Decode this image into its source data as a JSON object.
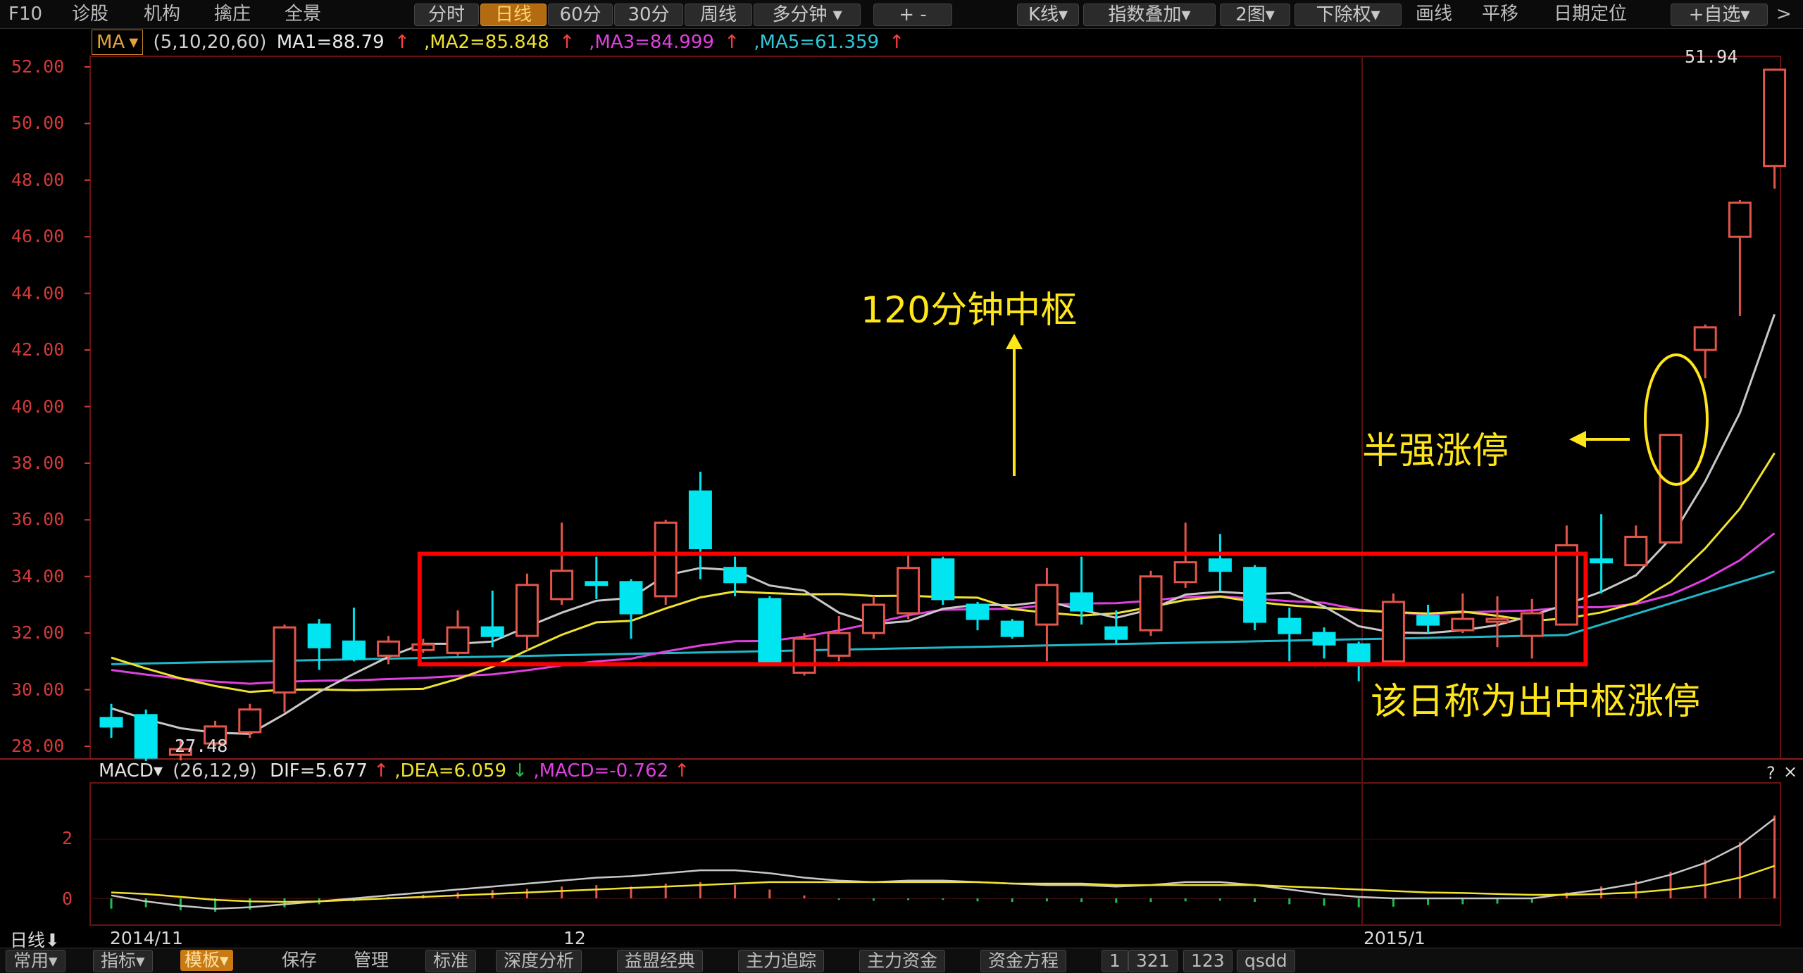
{
  "toolbar": {
    "left_items": [
      "F10",
      "诊股",
      "机构",
      "擒庄",
      "全景"
    ],
    "period_tabs": [
      "分时",
      "日线",
      "60分",
      "30分",
      "周线",
      "多分钟"
    ],
    "active_period": "日线",
    "zoom_label": "+ -",
    "right_items": [
      "K线",
      "指数叠加",
      "2图",
      "下除权",
      "画线",
      "平移",
      "日期定位",
      "+自选"
    ],
    "close_label": ">"
  },
  "ma_bar": {
    "selector": "MA",
    "params": "(5,10,20,60)",
    "ma1": "MA1=88.79",
    "ma2": ",MA2=85.848",
    "ma3": ",MA3=84.999",
    "ma5": ",MA5=61.359",
    "up_arrow": "↑"
  },
  "price_axis": {
    "labels": [
      "52.00",
      "50.00",
      "48.00",
      "46.00",
      "44.00",
      "42.00",
      "40.00",
      "38.00",
      "36.00",
      "34.00",
      "32.00",
      "30.00",
      "28.00"
    ]
  },
  "price_marks": {
    "high": "51.94",
    "low": "27.48"
  },
  "annotations": {
    "pivot_label": "120分钟中枢",
    "half_strong_label": "半强涨停",
    "breakout_label": "该日称为出中枢涨停"
  },
  "macd_bar": {
    "selector": "MACD",
    "params": "(26,12,9)",
    "dif": "DIF=5.677",
    "dea": ",DEA=6.059",
    "macd": ",MACD=-0.762",
    "up_arrow": "↑",
    "down_arrow": "↓"
  },
  "macd_axis": {
    "labels": [
      "2",
      "0"
    ]
  },
  "x_axis": {
    "period_label": "日线",
    "dates": [
      "2014/11",
      "12",
      "2015/1"
    ]
  },
  "panel_controls": {
    "help": "?",
    "close": "×"
  },
  "bottom_bar": {
    "items": [
      "常用",
      "指标",
      "模板",
      "保存",
      "管理",
      "标准",
      "深度分析",
      "益盟经典",
      "主力追踪",
      "主力资金",
      "资金方程",
      "1",
      "321",
      "123",
      "qsdd"
    ],
    "active": "模板"
  },
  "colors": {
    "up": "#e2554a",
    "down": "#00e5f0",
    "ma1": "#c8c8c8",
    "ma2": "#f0e230",
    "ma3": "#e040e0",
    "ma5": "#20b8c8",
    "frame": "#ff0000",
    "annotation": "#ffe61a",
    "axis_text": "#d43a3a"
  },
  "chart_data": {
    "type": "candlestick",
    "ylim": [
      27,
      53
    ],
    "candles": [
      {
        "o": 29.0,
        "c": 28.7,
        "h": 29.5,
        "l": 28.3
      },
      {
        "o": 29.1,
        "c": 27.6,
        "h": 29.3,
        "l": 27.48
      },
      {
        "o": 27.7,
        "c": 27.9,
        "h": 28.2,
        "l": 27.5
      },
      {
        "o": 28.1,
        "c": 28.7,
        "h": 28.9,
        "l": 28.0
      },
      {
        "o": 28.5,
        "c": 29.3,
        "h": 29.5,
        "l": 28.3
      },
      {
        "o": 29.9,
        "c": 32.2,
        "h": 32.3,
        "l": 29.2
      },
      {
        "o": 32.3,
        "c": 31.5,
        "h": 32.5,
        "l": 30.7
      },
      {
        "o": 31.7,
        "c": 31.1,
        "h": 32.9,
        "l": 31.0
      },
      {
        "o": 31.2,
        "c": 31.7,
        "h": 31.9,
        "l": 30.9
      },
      {
        "o": 31.4,
        "c": 31.6,
        "h": 31.8,
        "l": 31.3
      },
      {
        "o": 31.3,
        "c": 32.2,
        "h": 32.8,
        "l": 31.2
      },
      {
        "o": 32.2,
        "c": 31.9,
        "h": 33.5,
        "l": 31.5
      },
      {
        "o": 31.9,
        "c": 33.7,
        "h": 34.1,
        "l": 31.4
      },
      {
        "o": 33.2,
        "c": 34.2,
        "h": 35.9,
        "l": 33.0
      },
      {
        "o": 33.8,
        "c": 33.7,
        "h": 34.7,
        "l": 33.2
      },
      {
        "o": 33.8,
        "c": 32.7,
        "h": 33.9,
        "l": 31.8
      },
      {
        "o": 33.3,
        "c": 35.9,
        "h": 36.0,
        "l": 33.0
      },
      {
        "o": 37.0,
        "c": 35.0,
        "h": 37.7,
        "l": 33.9
      },
      {
        "o": 34.3,
        "c": 33.8,
        "h": 34.7,
        "l": 33.3
      },
      {
        "o": 33.2,
        "c": 31.0,
        "h": 33.3,
        "l": 30.9
      },
      {
        "o": 30.6,
        "c": 31.8,
        "h": 32.0,
        "l": 30.5
      },
      {
        "o": 31.2,
        "c": 32.0,
        "h": 32.6,
        "l": 31.0
      },
      {
        "o": 32.0,
        "c": 33.0,
        "h": 33.3,
        "l": 31.8
      },
      {
        "o": 32.7,
        "c": 34.3,
        "h": 34.8,
        "l": 32.5
      },
      {
        "o": 34.6,
        "c": 33.2,
        "h": 34.7,
        "l": 33.0
      },
      {
        "o": 33.0,
        "c": 32.5,
        "h": 33.1,
        "l": 32.1
      },
      {
        "o": 32.4,
        "c": 31.9,
        "h": 32.5,
        "l": 31.8
      },
      {
        "o": 32.3,
        "c": 33.7,
        "h": 34.3,
        "l": 31.0
      },
      {
        "o": 33.4,
        "c": 32.8,
        "h": 34.7,
        "l": 32.3
      },
      {
        "o": 32.2,
        "c": 31.8,
        "h": 32.8,
        "l": 31.6
      },
      {
        "o": 32.1,
        "c": 34.0,
        "h": 34.2,
        "l": 31.9
      },
      {
        "o": 33.8,
        "c": 34.5,
        "h": 35.9,
        "l": 33.6
      },
      {
        "o": 34.6,
        "c": 34.2,
        "h": 35.5,
        "l": 33.5
      },
      {
        "o": 34.3,
        "c": 32.4,
        "h": 34.4,
        "l": 32.1
      },
      {
        "o": 32.5,
        "c": 32.0,
        "h": 32.9,
        "l": 31.0
      },
      {
        "o": 32.0,
        "c": 31.6,
        "h": 32.2,
        "l": 31.1
      },
      {
        "o": 31.6,
        "c": 31.0,
        "h": 31.7,
        "l": 30.3
      },
      {
        "o": 31.0,
        "c": 33.1,
        "h": 33.4,
        "l": 31.0
      },
      {
        "o": 32.6,
        "c": 32.3,
        "h": 33.0,
        "l": 32.0
      },
      {
        "o": 32.1,
        "c": 32.5,
        "h": 33.4,
        "l": 32.0
      },
      {
        "o": 32.4,
        "c": 32.5,
        "h": 33.3,
        "l": 31.5
      },
      {
        "o": 31.9,
        "c": 32.7,
        "h": 33.2,
        "l": 31.1
      },
      {
        "o": 32.3,
        "c": 35.1,
        "h": 35.8,
        "l": 32.3
      },
      {
        "o": 34.6,
        "c": 34.5,
        "h": 36.2,
        "l": 33.4
      },
      {
        "o": 34.4,
        "c": 35.4,
        "h": 35.8,
        "l": 34.4
      },
      {
        "o": 35.2,
        "c": 39.0,
        "h": 39.0,
        "l": 35.2
      },
      {
        "o": 42.0,
        "c": 42.8,
        "h": 42.9,
        "l": 41.0
      },
      {
        "o": 46.0,
        "c": 47.2,
        "h": 47.3,
        "l": 43.2
      },
      {
        "o": 48.5,
        "c": 51.9,
        "h": 51.94,
        "l": 47.7
      }
    ],
    "pivot_zone": {
      "start_index": 9,
      "end_index": 42,
      "top": 34.8,
      "bottom": 30.9
    },
    "macd": {
      "hist": [
        -0.35,
        -0.3,
        -0.4,
        -0.45,
        -0.38,
        -0.3,
        -0.2,
        -0.1,
        0.05,
        0.12,
        0.2,
        0.28,
        0.32,
        0.4,
        0.45,
        0.4,
        0.5,
        0.55,
        0.45,
        0.3,
        0.1,
        -0.05,
        -0.08,
        -0.06,
        -0.05,
        -0.1,
        -0.12,
        -0.1,
        -0.12,
        -0.15,
        -0.12,
        -0.1,
        -0.08,
        -0.12,
        -0.2,
        -0.25,
        -0.3,
        -0.28,
        -0.22,
        -0.2,
        -0.18,
        -0.15,
        0.2,
        0.4,
        0.6,
        0.9,
        1.3,
        1.9,
        2.8
      ],
      "dif": [
        0.1,
        -0.1,
        -0.25,
        -0.35,
        -0.3,
        -0.2,
        -0.1,
        0.0,
        0.1,
        0.2,
        0.3,
        0.4,
        0.5,
        0.6,
        0.7,
        0.75,
        0.85,
        0.95,
        0.95,
        0.85,
        0.7,
        0.6,
        0.55,
        0.6,
        0.6,
        0.55,
        0.5,
        0.45,
        0.45,
        0.4,
        0.45,
        0.55,
        0.55,
        0.45,
        0.3,
        0.15,
        0.05,
        0.0,
        0.0,
        0.0,
        0.0,
        0.0,
        0.15,
        0.3,
        0.5,
        0.8,
        1.2,
        1.8,
        2.7
      ],
      "dea": [
        0.2,
        0.15,
        0.05,
        -0.05,
        -0.1,
        -0.12,
        -0.1,
        -0.05,
        0.0,
        0.05,
        0.1,
        0.15,
        0.2,
        0.25,
        0.3,
        0.35,
        0.4,
        0.45,
        0.5,
        0.55,
        0.55,
        0.55,
        0.55,
        0.55,
        0.55,
        0.55,
        0.5,
        0.5,
        0.5,
        0.45,
        0.45,
        0.45,
        0.45,
        0.45,
        0.4,
        0.35,
        0.3,
        0.25,
        0.2,
        0.18,
        0.15,
        0.12,
        0.12,
        0.15,
        0.2,
        0.3,
        0.45,
        0.7,
        1.1
      ]
    }
  }
}
